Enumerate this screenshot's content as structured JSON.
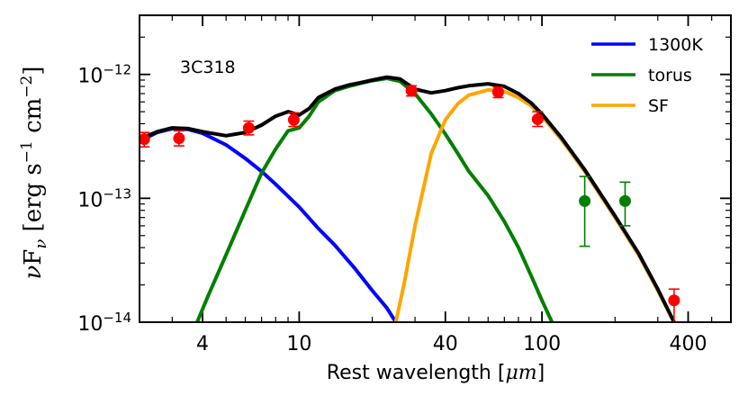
{
  "chart_data": {
    "type": "line",
    "title": "",
    "annotation": "3C318",
    "xlabel_text": "Rest wavelength [",
    "xlabel_unit": "μm",
    "xlabel_close": "]",
    "ylabel": {
      "nu": "ν",
      "F": "F",
      "sub": "ν",
      "open": " [erg s",
      "exp1": "−1",
      "mid": " cm",
      "exp2": "−2",
      "close": "]"
    },
    "x_scale": "log",
    "y_scale": "log",
    "xlim": [
      2.2,
      600
    ],
    "ylim": [
      1e-14,
      3e-12
    ],
    "x_ticks": [
      {
        "value": 4,
        "label": "4"
      },
      {
        "value": 10,
        "label": "10"
      },
      {
        "value": 40,
        "label": "40"
      },
      {
        "value": 100,
        "label": "100"
      },
      {
        "value": 400,
        "label": "400"
      }
    ],
    "y_ticks": [
      {
        "value": 1e-14,
        "base": "10",
        "exp": "−14"
      },
      {
        "value": 1e-13,
        "base": "10",
        "exp": "−13"
      },
      {
        "value": 1e-12,
        "base": "10",
        "exp": "−12"
      }
    ],
    "legend": {
      "position": "top-right",
      "entries": [
        {
          "label": "1300K",
          "color": "#0000ff"
        },
        {
          "label": "torus",
          "color": "#007f00"
        },
        {
          "label": "SF",
          "color": "#ffa500"
        }
      ]
    },
    "series": [
      {
        "name": "1300K",
        "color": "#0000ff",
        "points": [
          [
            2.2,
            2.9e-13
          ],
          [
            2.6,
            3.4e-13
          ],
          [
            3.0,
            3.65e-13
          ],
          [
            3.5,
            3.6e-13
          ],
          [
            4.0,
            3.35e-13
          ],
          [
            5.0,
            2.7e-13
          ],
          [
            6.0,
            2.1e-13
          ],
          [
            7.0,
            1.65e-13
          ],
          [
            8.0,
            1.3e-13
          ],
          [
            10.0,
            8.5e-14
          ],
          [
            12.0,
            5.7e-14
          ],
          [
            14.0,
            4.2e-14
          ],
          [
            17.0,
            2.7e-14
          ],
          [
            20.0,
            1.8e-14
          ],
          [
            23.0,
            1.3e-14
          ],
          [
            25.0,
            1e-14
          ]
        ]
      },
      {
        "name": "torus",
        "color": "#007f00",
        "points": [
          [
            3.8,
            1e-14
          ],
          [
            4.2,
            1.6e-14
          ],
          [
            5.0,
            3.5e-14
          ],
          [
            6.0,
            8e-14
          ],
          [
            7.0,
            1.6e-13
          ],
          [
            8.0,
            2.5e-13
          ],
          [
            9.0,
            3.5e-13
          ],
          [
            10.0,
            3.7e-13
          ],
          [
            11.0,
            4.6e-13
          ],
          [
            12.0,
            6e-13
          ],
          [
            14.0,
            7.4e-13
          ],
          [
            16.0,
            8e-13
          ],
          [
            18.0,
            8.5e-13
          ],
          [
            20.0,
            8.9e-13
          ],
          [
            23.0,
            9.3e-13
          ],
          [
            26.0,
            8.8e-13
          ],
          [
            30.0,
            7e-13
          ],
          [
            35.0,
            4.8e-13
          ],
          [
            40.0,
            3.3e-13
          ],
          [
            45.0,
            2.3e-13
          ],
          [
            50.0,
            1.65e-13
          ],
          [
            60.0,
            1.05e-13
          ],
          [
            70.0,
            6.5e-14
          ],
          [
            80.0,
            4e-14
          ],
          [
            90.0,
            2.4e-14
          ],
          [
            100.0,
            1.5e-14
          ],
          [
            110.0,
            1e-14
          ]
        ]
      },
      {
        "name": "SF",
        "color": "#ffa500",
        "points": [
          [
            25.0,
            1e-14
          ],
          [
            27.0,
            2e-14
          ],
          [
            30.0,
            6e-14
          ],
          [
            35.0,
            2.3e-13
          ],
          [
            40.0,
            4.3e-13
          ],
          [
            45.0,
            5.8e-13
          ],
          [
            50.0,
            6.8e-13
          ],
          [
            60.0,
            7.5e-13
          ],
          [
            70.0,
            7.3e-13
          ],
          [
            80.0,
            6.5e-13
          ],
          [
            90.0,
            5.6e-13
          ],
          [
            100.0,
            4.6e-13
          ],
          [
            120.0,
            3e-13
          ],
          [
            150.0,
            1.65e-13
          ],
          [
            200.0,
            7e-14
          ],
          [
            250.0,
            3.5e-14
          ],
          [
            300.0,
            1.8e-14
          ],
          [
            350.0,
            1e-14
          ]
        ]
      },
      {
        "name": "total",
        "color": "#000000",
        "points": [
          [
            2.2,
            3e-13
          ],
          [
            2.6,
            3.45e-13
          ],
          [
            3.0,
            3.7e-13
          ],
          [
            3.5,
            3.65e-13
          ],
          [
            4.0,
            3.45e-13
          ],
          [
            5.0,
            3.2e-13
          ],
          [
            6.0,
            3.4e-13
          ],
          [
            7.0,
            3.9e-13
          ],
          [
            8.0,
            4.6e-13
          ],
          [
            9.0,
            5e-13
          ],
          [
            10.0,
            4.7e-13
          ],
          [
            11.0,
            5.3e-13
          ],
          [
            12.0,
            6.5e-13
          ],
          [
            14.0,
            7.6e-13
          ],
          [
            16.0,
            8.2e-13
          ],
          [
            18.0,
            8.6e-13
          ],
          [
            20.0,
            9e-13
          ],
          [
            23.0,
            9.5e-13
          ],
          [
            26.0,
            9.2e-13
          ],
          [
            30.0,
            7.6e-13
          ],
          [
            35.0,
            7.1e-13
          ],
          [
            40.0,
            7.4e-13
          ],
          [
            45.0,
            7.8e-13
          ],
          [
            50.0,
            8.1e-13
          ],
          [
            60.0,
            8.4e-13
          ],
          [
            70.0,
            8e-13
          ],
          [
            80.0,
            7e-13
          ],
          [
            90.0,
            5.9e-13
          ],
          [
            100.0,
            4.8e-13
          ],
          [
            120.0,
            3.1e-13
          ],
          [
            150.0,
            1.7e-13
          ],
          [
            200.0,
            7.2e-14
          ],
          [
            250.0,
            3.6e-14
          ],
          [
            300.0,
            1.85e-14
          ],
          [
            350.0,
            1e-14
          ]
        ]
      }
    ],
    "observations": [
      {
        "x": 2.3,
        "y": 3e-13,
        "err_lo": 2.6e-13,
        "err_hi": 3.4e-13,
        "color": "#ff0000"
      },
      {
        "x": 3.2,
        "y": 3.05e-13,
        "err_lo": 2.65e-13,
        "err_hi": 3.5e-13,
        "color": "#ff0000"
      },
      {
        "x": 6.2,
        "y": 3.7e-13,
        "err_lo": 3.25e-13,
        "err_hi": 4.2e-13,
        "color": "#ff0000"
      },
      {
        "x": 9.5,
        "y": 4.3e-13,
        "err_lo": 3.8e-13,
        "err_hi": 4.9e-13,
        "color": "#ff0000"
      },
      {
        "x": 29.0,
        "y": 7.4e-13,
        "err_lo": 6.7e-13,
        "err_hi": 8.1e-13,
        "color": "#ff0000"
      },
      {
        "x": 66.0,
        "y": 7.2e-13,
        "err_lo": 6.5e-13,
        "err_hi": 7.9e-13,
        "color": "#ff0000"
      },
      {
        "x": 96.0,
        "y": 4.35e-13,
        "err_lo": 3.8e-13,
        "err_hi": 5e-13,
        "color": "#ff0000"
      },
      {
        "x": 150.0,
        "y": 9.5e-14,
        "err_lo": 4.1e-14,
        "err_hi": 1.5e-13,
        "color": "#007f00"
      },
      {
        "x": 220.0,
        "y": 9.5e-14,
        "err_lo": 6e-14,
        "err_hi": 1.35e-13,
        "color": "#007f00"
      },
      {
        "x": 350.0,
        "y": 1.5e-14,
        "err_lo": 1e-14,
        "err_hi": 1.85e-14,
        "color": "#ff0000"
      }
    ]
  }
}
